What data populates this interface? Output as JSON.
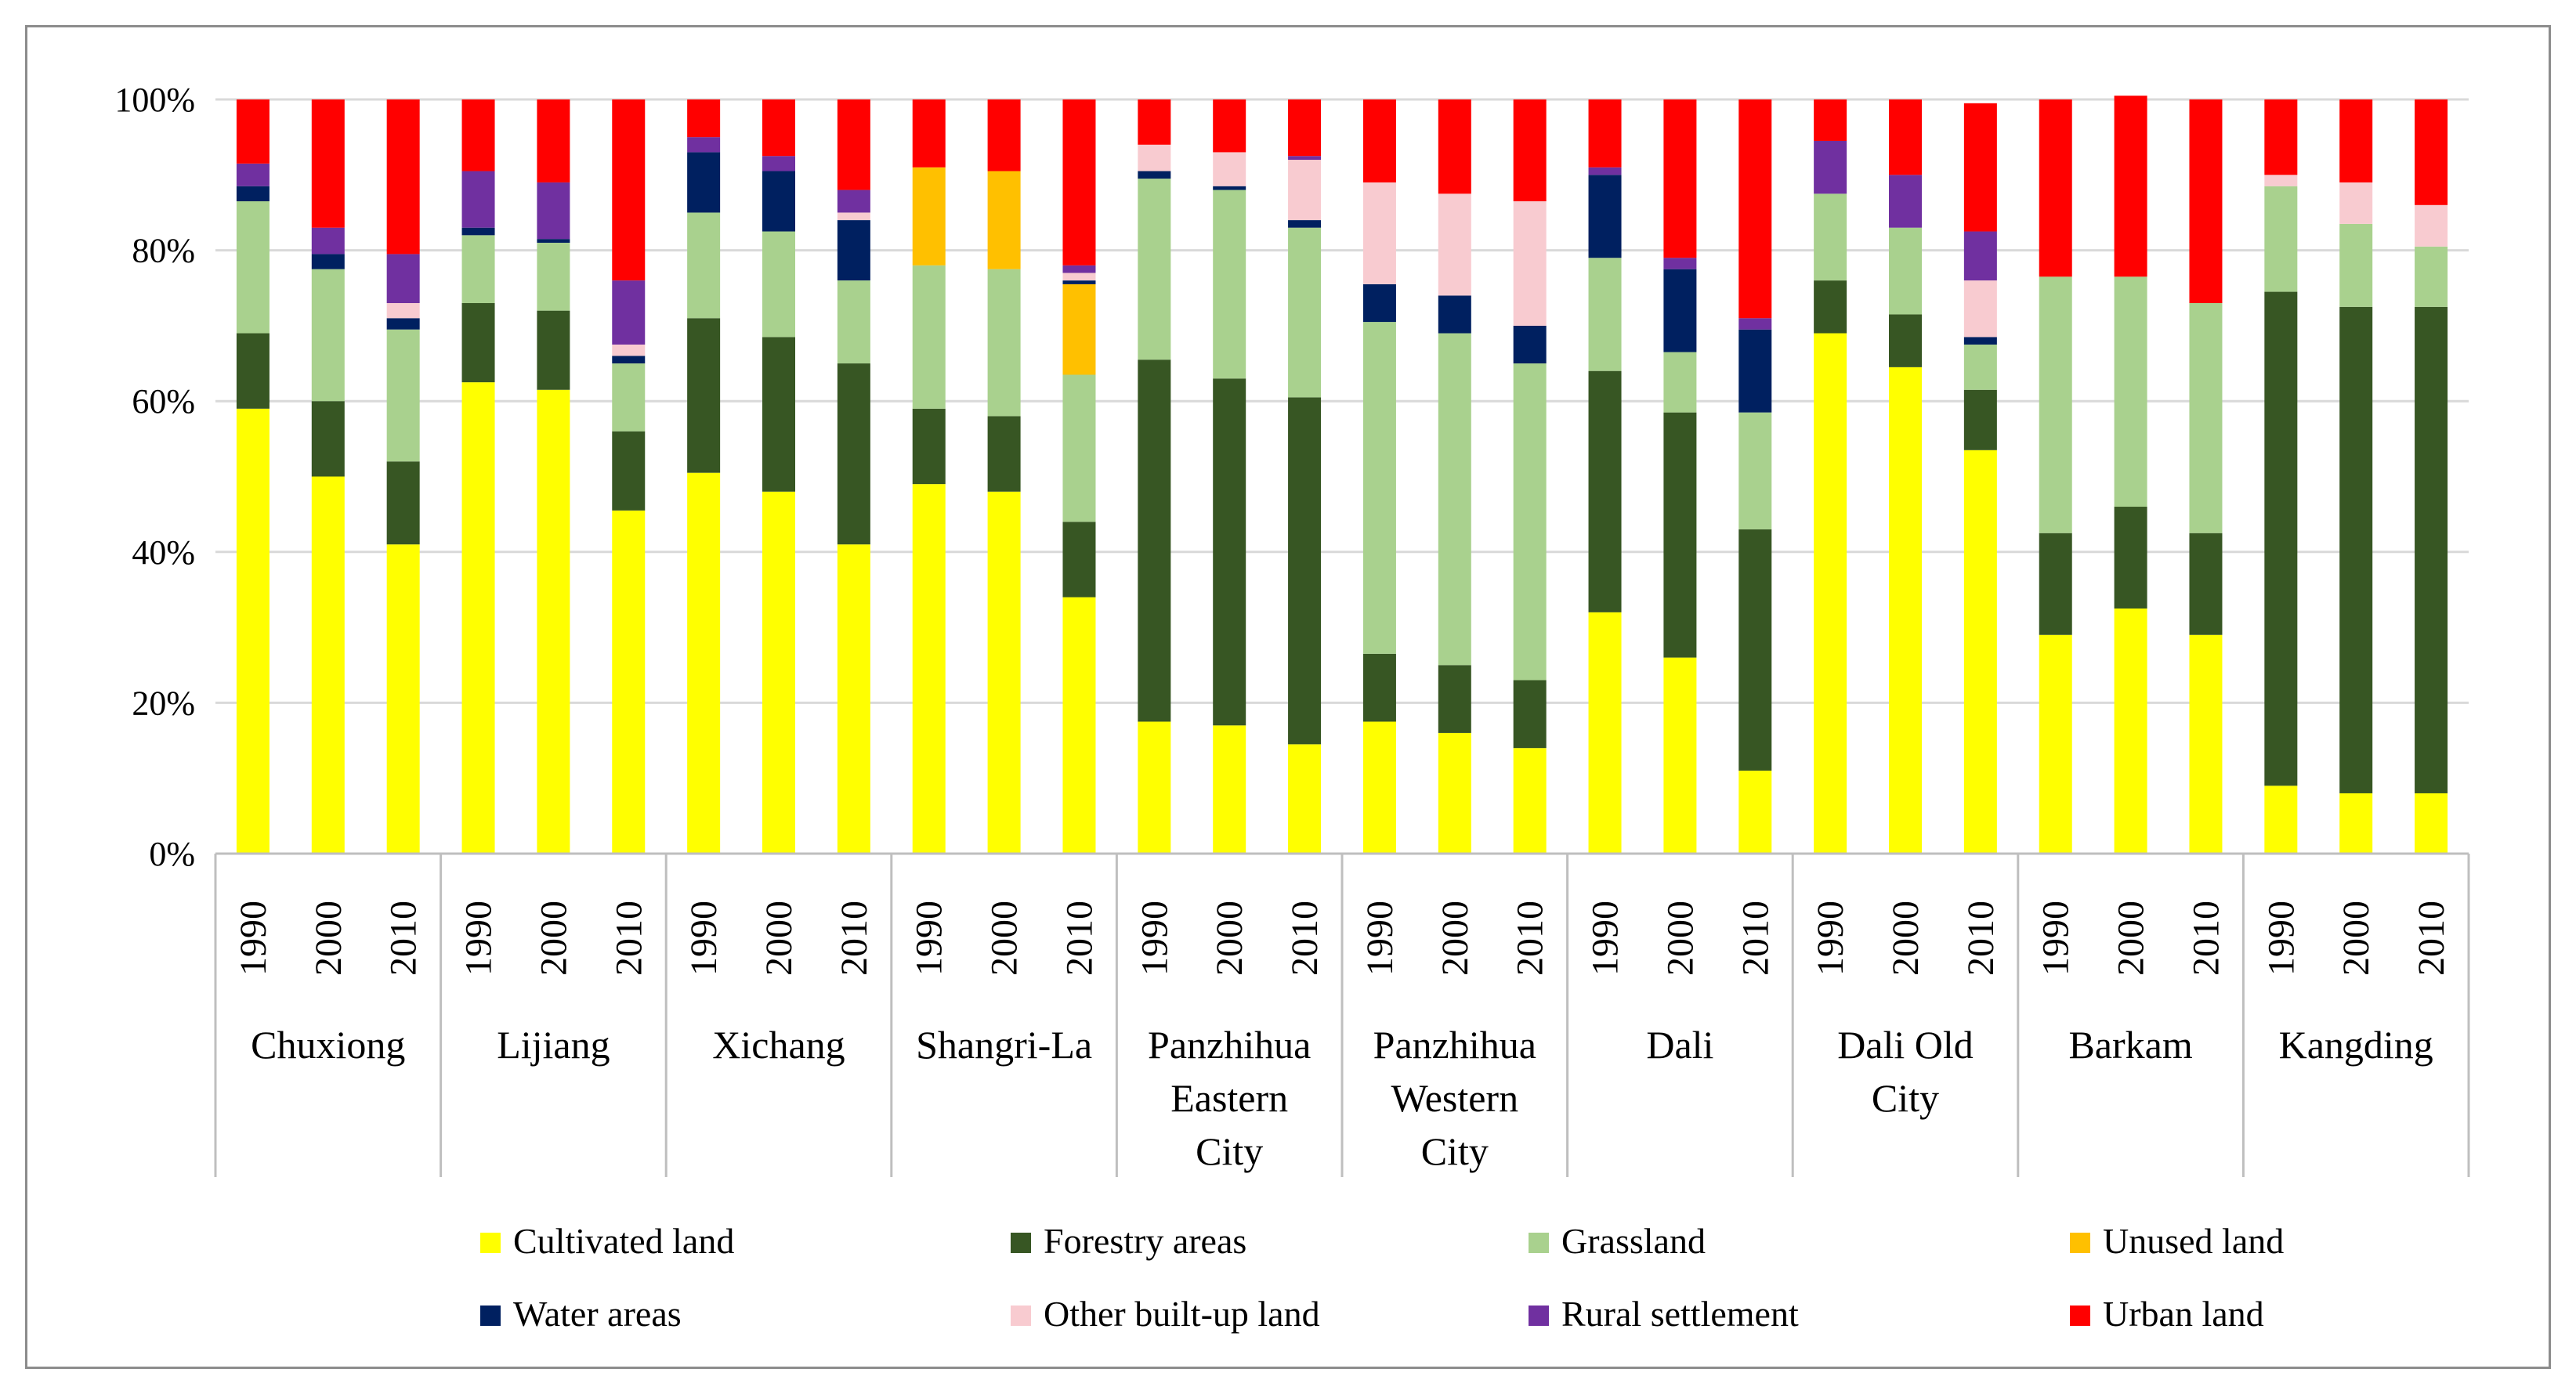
{
  "chart_data": {
    "type": "bar",
    "stacked": true,
    "percent": true,
    "title": "",
    "xlabel": "",
    "ylabel": "",
    "ylim": [
      0,
      100
    ],
    "yticks": [
      "0%",
      "20%",
      "40%",
      "60%",
      "80%",
      "100%"
    ],
    "legend_position": "bottom",
    "groups": [
      {
        "name": "Chuxiong",
        "lines": [
          "Chuxiong"
        ]
      },
      {
        "name": "Lijiang",
        "lines": [
          "Lijiang"
        ]
      },
      {
        "name": "Xichang",
        "lines": [
          "Xichang"
        ]
      },
      {
        "name": "Shangri-La",
        "lines": [
          "Shangri-La"
        ]
      },
      {
        "name": "Panzhihua Eastern City",
        "lines": [
          "Panzhihua",
          "Eastern",
          "City"
        ]
      },
      {
        "name": "Panzhihua Western City",
        "lines": [
          "Panzhihua",
          "Western",
          "City"
        ]
      },
      {
        "name": "Dali",
        "lines": [
          "Dali"
        ]
      },
      {
        "name": "Dali Old City",
        "lines": [
          "Dali Old",
          "City"
        ]
      },
      {
        "name": "Barkam",
        "lines": [
          "Barkam"
        ]
      },
      {
        "name": "Kangding",
        "lines": [
          "Kangding"
        ]
      }
    ],
    "years": [
      "1990",
      "2000",
      "2010"
    ],
    "series": [
      {
        "name": "Cultivated land",
        "color": "#FFFF00",
        "values": [
          59,
          50,
          41,
          62.5,
          61.5,
          45.5,
          50.5,
          48,
          41,
          49,
          48,
          34,
          17.5,
          17,
          14.5,
          17.5,
          16,
          14,
          32,
          26,
          11,
          69,
          64.5,
          53.5,
          29,
          32.5,
          29,
          9,
          8,
          8
        ]
      },
      {
        "name": "Forestry areas",
        "color": "#375623",
        "values": [
          10,
          10,
          11,
          10.5,
          10.5,
          10.5,
          20.5,
          20.5,
          24,
          10,
          10,
          10,
          48,
          46,
          46,
          9,
          9,
          9,
          32,
          32.5,
          32,
          7,
          7,
          8,
          13.5,
          13.5,
          13.5,
          65.5,
          64.5,
          64.5
        ]
      },
      {
        "name": "Grassland",
        "color": "#A9D18E",
        "values": [
          17.5,
          17.5,
          17.5,
          9,
          9,
          9,
          14,
          14,
          11,
          19,
          19.5,
          19.5,
          24,
          25,
          22.5,
          44,
          44,
          42,
          15,
          8,
          15.5,
          11.5,
          11.5,
          6,
          34,
          30.5,
          30.5,
          14,
          11,
          8
        ]
      },
      {
        "name": "Unused land",
        "color": "#FFC000",
        "values": [
          0,
          0,
          0,
          0,
          0,
          0,
          0,
          0,
          0,
          13,
          13,
          12,
          0,
          0,
          0,
          0,
          0,
          0,
          0,
          0,
          0,
          0,
          0,
          0,
          0,
          0,
          0,
          0,
          0,
          0
        ]
      },
      {
        "name": "Water areas",
        "color": "#002060",
        "values": [
          2,
          2,
          1.5,
          1,
          0.5,
          1,
          8,
          8,
          8,
          0,
          0,
          0.5,
          1,
          0.5,
          1,
          5,
          5,
          5,
          11,
          11,
          11,
          0,
          0,
          1,
          0,
          0,
          0,
          0,
          0,
          0
        ]
      },
      {
        "name": "Other built-up land",
        "color": "#F8CBD0",
        "values": [
          0,
          0,
          2,
          0,
          0,
          1.5,
          0,
          0,
          1,
          0,
          0,
          1,
          3.5,
          4.5,
          8,
          13.5,
          13.5,
          16.5,
          0,
          0,
          0,
          0,
          0,
          7.5,
          0,
          0,
          0,
          1.5,
          5.5,
          5.5
        ]
      },
      {
        "name": "Rural settlement",
        "color": "#7030A0",
        "values": [
          3,
          3.5,
          6.5,
          7.5,
          7.5,
          8.5,
          2,
          2,
          3,
          0,
          0,
          1,
          0,
          0,
          0.5,
          0,
          0,
          0,
          1,
          1.5,
          1.5,
          7,
          7,
          6.5,
          0,
          0,
          0,
          0,
          0,
          0
        ]
      },
      {
        "name": "Urban land",
        "color": "#FF0000",
        "values": [
          8.5,
          17,
          20.5,
          9.5,
          11,
          24,
          5,
          7.5,
          12,
          9,
          9.5,
          22,
          6,
          7,
          7.5,
          11,
          12.5,
          13.5,
          9,
          21,
          29,
          5.5,
          10,
          17,
          23.5,
          24,
          27,
          10,
          11,
          14
        ]
      }
    ]
  }
}
